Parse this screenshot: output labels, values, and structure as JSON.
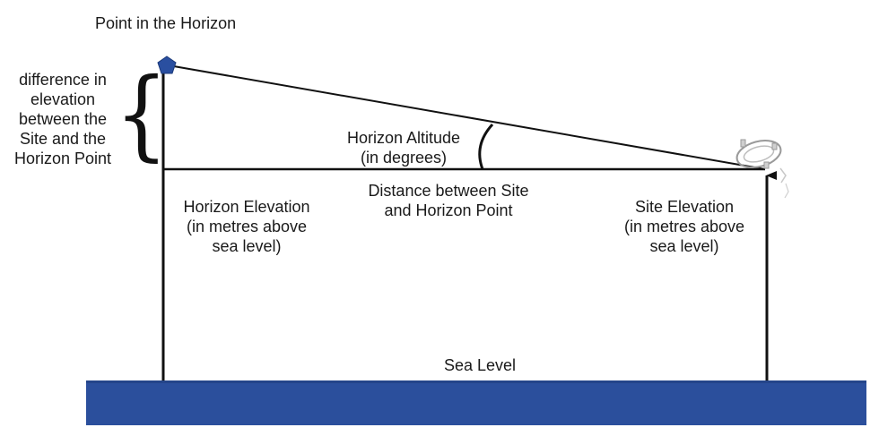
{
  "labels": {
    "point_in_horizon": "Point in the Horizon",
    "difference_lines": [
      "difference in",
      "elevation",
      "between the",
      "Site and the",
      "Horizon Point"
    ],
    "horizon_altitude_lines": [
      "Horizon Altitude",
      "(in degrees)"
    ],
    "distance_lines": [
      "Distance between Site",
      "and Horizon Point"
    ],
    "horizon_elevation_lines": [
      "Horizon Elevation",
      "(in metres above",
      "sea level)"
    ],
    "site_elevation_lines": [
      "Site Elevation",
      "(in metres above",
      "sea level)"
    ],
    "sea_level": "Sea Level",
    "brace_glyph": "{"
  },
  "colors": {
    "sea": "#2b4f9c",
    "sea_dark": "#24458a",
    "horizon_point": "#2a4fa0",
    "lines": "#111111",
    "site_icon": "#9a9a9a"
  },
  "icons": {
    "horizon_point": "pentagon-marker-icon",
    "site": "stone-circle-icon"
  }
}
